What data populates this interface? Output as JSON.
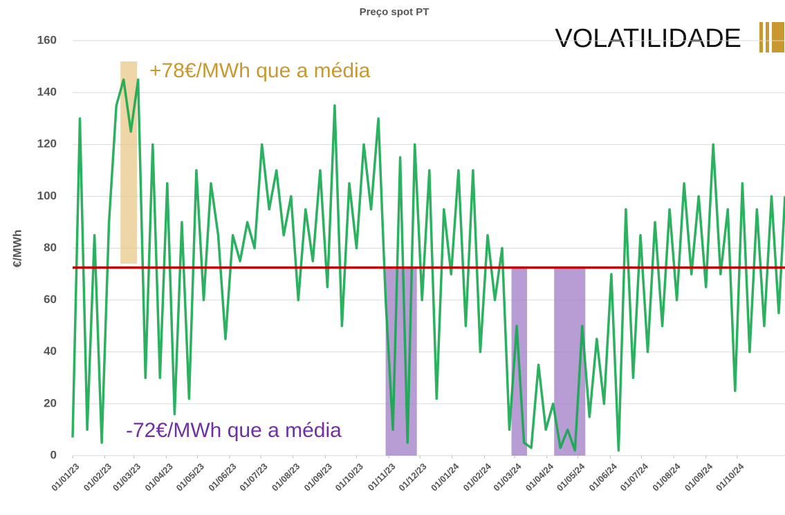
{
  "chart_data": {
    "type": "line",
    "title": "Preço spot PT",
    "heading": "VOLATILIDADE",
    "ylabel": "€/MWh",
    "x": [
      "01/01/23",
      "08/01/23",
      "15/01/23",
      "22/01/23",
      "29/01/23",
      "05/02/23",
      "12/02/23",
      "19/02/23",
      "26/02/23",
      "05/03/23",
      "12/03/23",
      "19/03/23",
      "26/03/23",
      "02/04/23",
      "09/04/23",
      "16/04/23",
      "23/04/23",
      "30/04/23",
      "07/05/23",
      "14/05/23",
      "21/05/23",
      "28/05/23",
      "04/06/23",
      "11/06/23",
      "18/06/23",
      "25/06/23",
      "02/07/23",
      "09/07/23",
      "16/07/23",
      "23/07/23",
      "30/07/23",
      "06/08/23",
      "13/08/23",
      "20/08/23",
      "27/08/23",
      "03/09/23",
      "10/09/23",
      "17/09/23",
      "24/09/23",
      "01/10/23",
      "08/10/23",
      "15/10/23",
      "22/10/23",
      "29/10/23",
      "05/11/23",
      "12/11/23",
      "19/11/23",
      "26/11/23",
      "03/12/23",
      "10/12/23",
      "17/12/23",
      "24/12/23",
      "31/12/23",
      "07/01/24",
      "14/01/24",
      "21/01/24",
      "28/01/24",
      "04/02/24",
      "11/02/24",
      "18/02/24",
      "25/02/24",
      "03/03/24",
      "10/03/24",
      "17/03/24",
      "24/03/24",
      "31/03/24",
      "07/04/24",
      "14/04/24",
      "21/04/24",
      "28/04/24",
      "05/05/24",
      "12/05/24",
      "19/05/24",
      "26/05/24",
      "02/06/24",
      "09/06/24",
      "16/06/24",
      "23/06/24",
      "30/06/24",
      "07/07/24",
      "14/07/24",
      "21/07/24",
      "28/07/24",
      "04/08/24",
      "11/08/24",
      "18/08/24",
      "25/08/24",
      "01/09/24",
      "08/09/24",
      "15/09/24",
      "22/09/24",
      "29/09/24",
      "06/10/24",
      "13/10/24",
      "20/10/24",
      "27/10/24",
      "03/11/24",
      "10/11/24",
      "16/11/24"
    ],
    "series": [
      {
        "name": "Preço spot PT",
        "color": "#14a84e",
        "values": [
          7,
          130,
          10,
          85,
          5,
          90,
          135,
          145,
          125,
          145,
          30,
          120,
          30,
          105,
          16,
          90,
          22,
          110,
          60,
          105,
          85,
          45,
          85,
          75,
          90,
          80,
          120,
          95,
          110,
          85,
          100,
          60,
          95,
          75,
          110,
          65,
          135,
          50,
          105,
          80,
          120,
          95,
          130,
          60,
          10,
          115,
          5,
          120,
          60,
          110,
          22,
          95,
          70,
          110,
          50,
          110,
          40,
          85,
          60,
          80,
          10,
          50,
          5,
          3,
          35,
          10,
          20,
          3,
          10,
          2,
          50,
          15,
          45,
          20,
          70,
          2,
          95,
          30,
          85,
          40,
          90,
          50,
          95,
          60,
          105,
          70,
          100,
          65,
          120,
          70,
          95,
          25,
          105,
          40,
          95,
          50,
          100,
          55,
          100
        ]
      }
    ],
    "mean": {
      "value": 72.5,
      "color": "#c00000"
    },
    "highlights": [
      {
        "x": [
          "16/02/23",
          "04/03/23"
        ],
        "y": [
          74,
          152
        ],
        "color": "#e8c88a"
      },
      {
        "x": [
          "29/10/23",
          "28/11/23"
        ],
        "y": [
          0,
          72.5
        ],
        "color": "#a07cc5"
      },
      {
        "x": [
          "27/02/24",
          "13/03/24"
        ],
        "y": [
          0,
          72.5
        ],
        "color": "#a07cc5"
      },
      {
        "x": [
          "08/04/24",
          "08/05/24"
        ],
        "y": [
          0,
          72.5
        ],
        "color": "#a07cc5"
      }
    ],
    "annotations": [
      {
        "text": "+78€/MWh que a média",
        "color": "#c9982e"
      },
      {
        "text": "-72€/MWh que a média",
        "color": "#7030a0"
      }
    ],
    "xlim": [
      "01/01/23",
      "16/11/24"
    ],
    "xticks": [
      "01/01/23",
      "01/02/23",
      "01/03/23",
      "01/04/23",
      "01/05/23",
      "01/06/23",
      "01/07/23",
      "01/08/23",
      "01/09/23",
      "01/10/23",
      "01/11/23",
      "01/12/23",
      "01/01/24",
      "01/02/24",
      "01/03/24",
      "01/04/24",
      "01/05/24",
      "01/06/24",
      "01/07/24",
      "01/08/24",
      "01/09/24",
      "01/10/24"
    ],
    "ylim": [
      0,
      160
    ],
    "yticks": [
      0,
      20,
      40,
      60,
      80,
      100,
      120,
      140,
      160
    ],
    "grid": true
  }
}
